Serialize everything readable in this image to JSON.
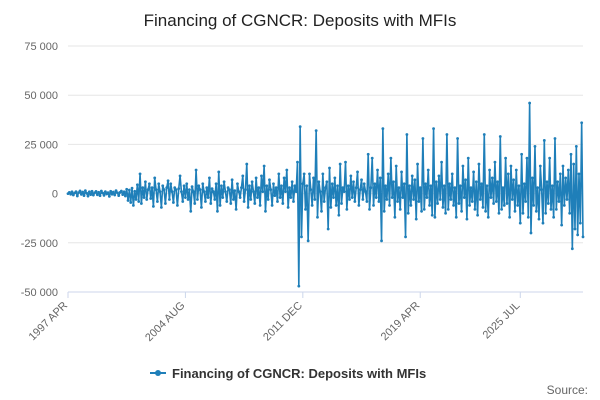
{
  "chart_data": {
    "type": "line",
    "title": "Financing of CGNCR: Deposits with MFIs",
    "xlabel": "",
    "ylabel": "",
    "ylim": [
      -50000,
      75000
    ],
    "yticks": [
      "75 000",
      "50 000",
      "25 000",
      "0",
      "-25 000",
      "-50 000"
    ],
    "ytick_values": [
      75000,
      50000,
      25000,
      0,
      -25000,
      -50000
    ],
    "xticks": [
      "1997 APR",
      "2004 AUG",
      "2011 DEC",
      "2019 APR",
      "2025 JUL"
    ],
    "xtick_positions": [
      0,
      88,
      176,
      264,
      339
    ],
    "grid": true,
    "legend_position": "bottom-center",
    "color": "#1f7fb9",
    "series": [
      {
        "name": "Financing of CGNCR: Deposits with MFIs",
        "values": [
          0,
          600,
          -300,
          900,
          -700,
          300,
          1000,
          -1200,
          500,
          1400,
          -400,
          800,
          -1000,
          1500,
          200,
          -1300,
          900,
          -500,
          1200,
          -800,
          400,
          1100,
          -600,
          700,
          -1100,
          1300,
          300,
          -900,
          1000,
          -200,
          500,
          -1400,
          1200,
          -300,
          800,
          -700,
          1500,
          400,
          -1000,
          600,
          1300,
          -500,
          900,
          -1200,
          2200,
          -3500,
          1800,
          -4500,
          2800,
          -6000,
          1200,
          -3000,
          4500,
          -4000,
          10000,
          -5000,
          3000,
          -2000,
          6000,
          -3000,
          2000,
          5000,
          -2500,
          3000,
          -6500,
          8000,
          2000,
          -4000,
          5000,
          1000,
          -7000,
          4000,
          2000,
          -5000,
          3000,
          6500,
          -3000,
          5000,
          1000,
          -4500,
          3000,
          2000,
          -6000,
          2500,
          9000,
          1000,
          -4000,
          4000,
          -2000,
          5000,
          -3000,
          2000,
          -9000,
          3500,
          1000,
          -5000,
          12000,
          -3000,
          4000,
          2000,
          -7000,
          5000,
          1000,
          -4000,
          3000,
          -2000,
          8000,
          -5000,
          2500,
          1000,
          -3000,
          5000,
          -9000,
          11000,
          -6000,
          4000,
          -2000,
          6000,
          1000,
          -4000,
          3000,
          2000,
          -5000,
          7000,
          -3000,
          1500,
          -8000,
          5000,
          1000,
          -2000,
          3000,
          9000,
          -4000,
          2000,
          15000,
          -7000,
          4000,
          -3000,
          6000,
          1000,
          -5000,
          8000,
          -2000,
          3000,
          -6000,
          9000,
          1000,
          14000,
          -9000,
          4000,
          -3000,
          7000,
          2000,
          -6000,
          5000,
          -1000,
          3000,
          -4000,
          10000,
          -2000,
          4000,
          -5000,
          8000,
          1000,
          12000,
          -7000,
          3000,
          -2000,
          6000,
          -4000,
          4000,
          1000,
          16000,
          -47000,
          34000,
          -22000,
          5000,
          10000,
          -8000,
          4000,
          -24000,
          10000,
          2000,
          -6000,
          8000,
          -3000,
          32000,
          -12000,
          6000,
          1000,
          -9000,
          10000,
          -4000,
          3000,
          6000,
          -18000,
          13000,
          -7000,
          5000,
          -2000,
          8000,
          -6000,
          4000,
          -11000,
          15000,
          -5000,
          3000,
          1000,
          16000,
          -8000,
          4000,
          -3000,
          9000,
          -2000,
          6000,
          -4000,
          3000,
          11000,
          -6000,
          2000,
          7000,
          -3000,
          5000,
          1000,
          -4000,
          20000,
          -8000,
          3000,
          18000,
          -6000,
          5000,
          -2000,
          12000,
          -4000,
          8000,
          -24000,
          33000,
          -9000,
          4000,
          -3000,
          10000,
          -6000,
          18000,
          -2000,
          6000,
          -12000,
          14000,
          -4000,
          3000,
          -8000,
          11000,
          -2000,
          5000,
          -22000,
          30000,
          -10000,
          4000,
          -6000,
          9000,
          -3000,
          7000,
          -13000,
          15000,
          -4000,
          3000,
          -9000,
          28000,
          -8000,
          5000,
          -2000,
          12000,
          -6000,
          4000,
          -11000,
          33000,
          -12000,
          6000,
          -5000,
          9000,
          -3000,
          16000,
          -7000,
          4000,
          -10000,
          30000,
          -8000,
          5000,
          -3000,
          10000,
          -6000,
          3000,
          -12000,
          28000,
          -5000,
          4000,
          -9000,
          14000,
          -2000,
          7000,
          -13000,
          18000,
          -6000,
          3000,
          -4000,
          11000,
          -8000,
          6000,
          -11000,
          15000,
          -3000,
          5000,
          -7000,
          30000,
          -9000,
          4000,
          -12000,
          12000,
          -2000,
          8000,
          -5000,
          16000,
          -4000,
          6000,
          -10000,
          29000,
          -8000,
          3000,
          -6000,
          18000,
          -5000,
          10000,
          -12000,
          14000,
          -3000,
          7000,
          -9000,
          12000,
          -6000,
          4000,
          -15000,
          20000,
          -10000,
          5000,
          -4000,
          18000,
          -12000,
          46000,
          -20000,
          8000,
          -6000,
          24000,
          -9000,
          3000,
          -13000,
          14000,
          2000,
          -15000,
          27000,
          -10000,
          6000,
          -5000,
          18000,
          -8000,
          4000,
          -12000,
          28000,
          -8000,
          6000,
          -4000,
          10000,
          -16000,
          14000,
          -6000,
          8000,
          -3000,
          12000,
          -10000,
          20000,
          -28000,
          15000,
          -18000,
          24000,
          -21000,
          10000,
          -15000,
          36000,
          -22000
        ]
      }
    ]
  },
  "footer": {
    "source_label": "Source:"
  }
}
